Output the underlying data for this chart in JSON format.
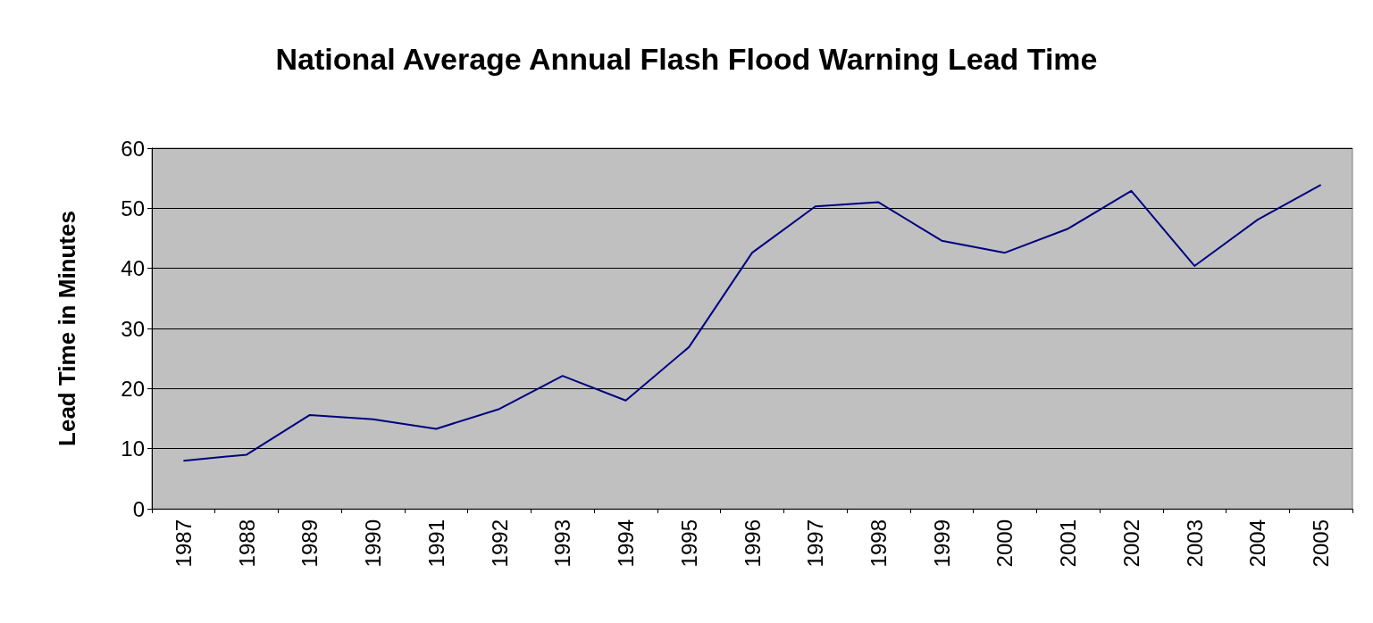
{
  "chart_data": {
    "type": "line",
    "title": "National Average Annual Flash Flood Warning Lead Time",
    "ylabel": "Lead Time in Minutes",
    "categories": [
      "1987",
      "1988",
      "1989",
      "1990",
      "1991",
      "1992",
      "1993",
      "1994",
      "1995",
      "1996",
      "1997",
      "1998",
      "1999",
      "2000",
      "2001",
      "2002",
      "2003",
      "2004",
      "2005"
    ],
    "series": [
      {
        "color": "#000080",
        "values": [
          8.0,
          9.0,
          15.6,
          14.9,
          13.3,
          16.6,
          22.1,
          18.0,
          26.9,
          42.6,
          50.3,
          51.0,
          44.6,
          42.6,
          46.6,
          52.9,
          40.4,
          48.1,
          53.9
        ]
      }
    ],
    "ylim": [
      0,
      60
    ],
    "yticks": [
      0,
      10,
      20,
      30,
      40,
      50,
      60
    ],
    "grid": "y",
    "marker": "none",
    "line_style": "solid"
  }
}
